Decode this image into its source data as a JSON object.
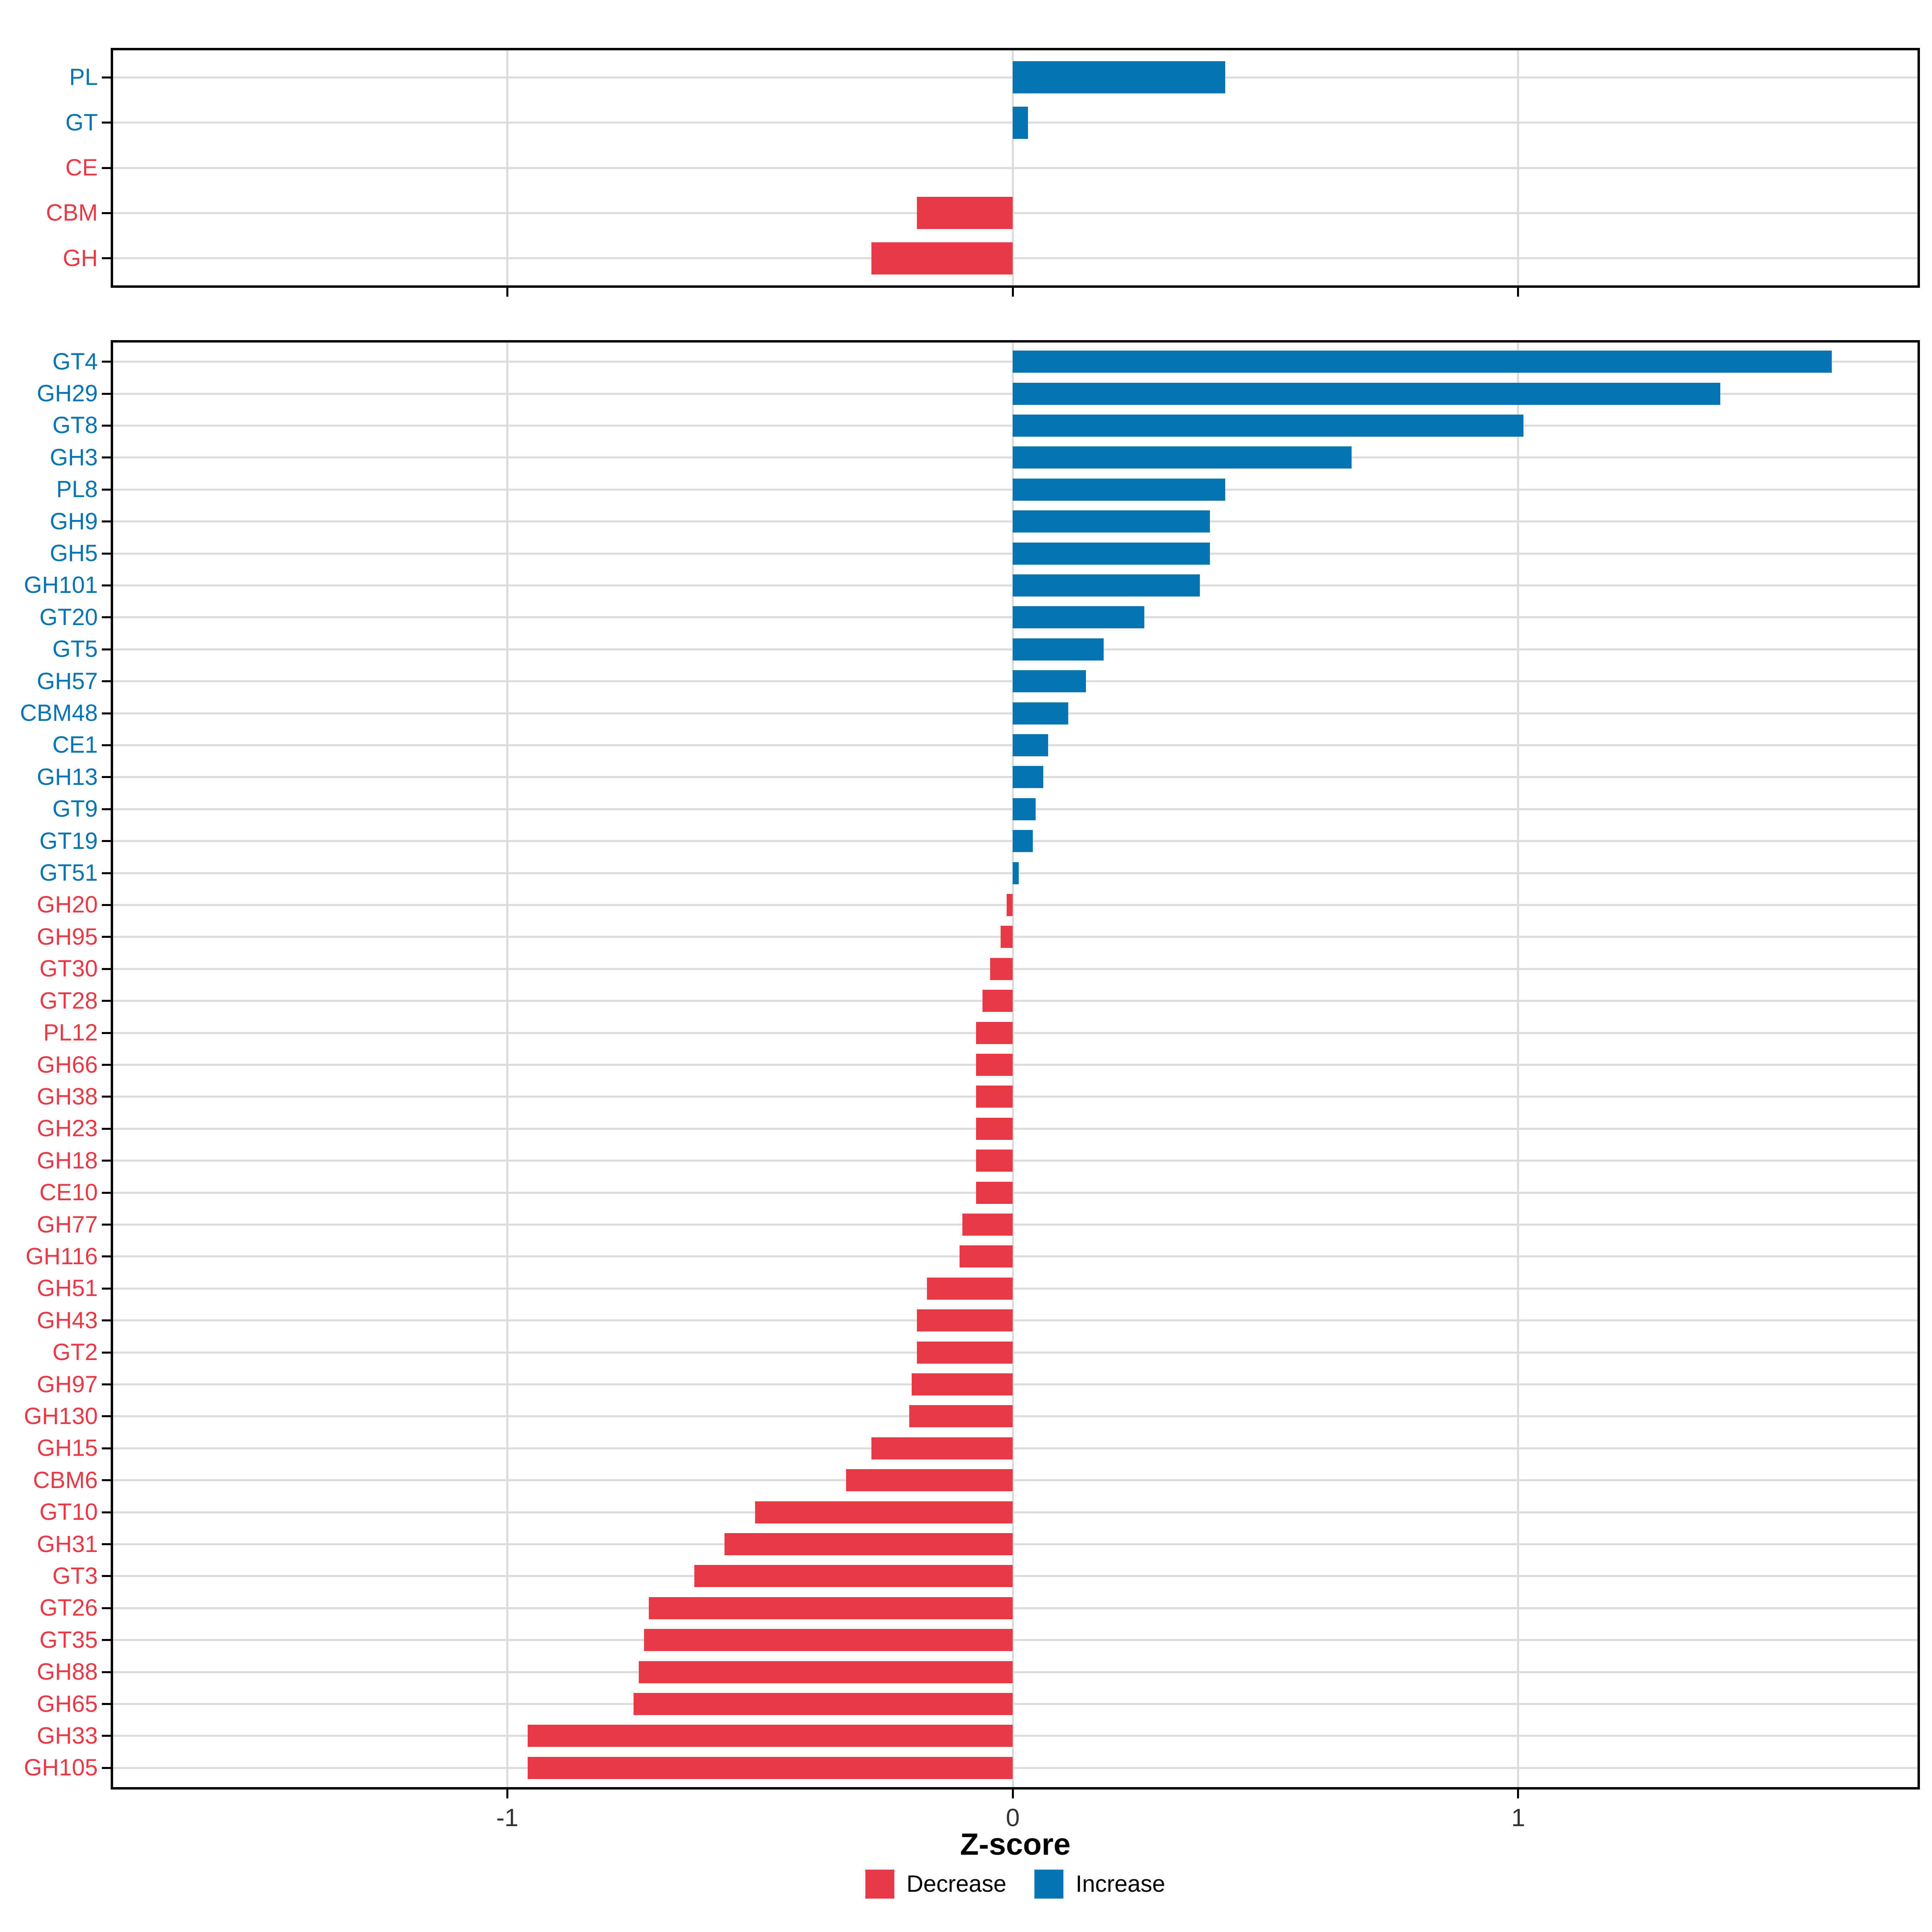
{
  "chart_data": [
    {
      "type": "bar",
      "orientation": "horizontal",
      "panel": "class-level",
      "title": "",
      "xlabel": "Z-score",
      "xlim": [
        -1.78,
        1.79
      ],
      "xticks": [
        -1,
        0,
        1
      ],
      "xtick_labels": [
        "-1",
        "0",
        "1"
      ],
      "grid": "major",
      "legend_position": "bottom",
      "categories": [
        "PL",
        "GT",
        "CE",
        "CBM",
        "GH"
      ],
      "values": [
        0.42,
        0.03,
        0,
        -0.19,
        -0.28
      ],
      "directions": [
        "Increase",
        "Increase",
        "Decrease",
        "Decrease",
        "Decrease"
      ]
    },
    {
      "type": "bar",
      "orientation": "horizontal",
      "panel": "family-level",
      "title": "",
      "xlabel": "Z-score",
      "xlim": [
        -1.78,
        1.79
      ],
      "xticks": [
        -1,
        0,
        1
      ],
      "xtick_labels": [
        "-1",
        "0",
        "1"
      ],
      "grid": "major",
      "legend_position": "bottom",
      "categories": [
        "GT4",
        "GH29",
        "GT8",
        "GH3",
        "PL8",
        "GH9",
        "GH5",
        "GH101",
        "GT20",
        "GT5",
        "GH57",
        "CBM48",
        "CE1",
        "GH13",
        "GT9",
        "GT19",
        "GT51",
        "GH20",
        "GH95",
        "GT30",
        "GT28",
        "PL12",
        "GH66",
        "GH38",
        "GH23",
        "GH18",
        "CE10",
        "GH77",
        "GH116",
        "GH51",
        "GH43",
        "GT2",
        "GH97",
        "GH130",
        "GH15",
        "CBM6",
        "GT10",
        "GH31",
        "GT3",
        "GT26",
        "GT35",
        "GH88",
        "GH65",
        "GH33",
        "GH105"
      ],
      "values": [
        1.62,
        1.4,
        1.01,
        0.67,
        0.42,
        0.39,
        0.39,
        0.37,
        0.26,
        0.18,
        0.145,
        0.11,
        0.07,
        0.06,
        0.045,
        0.04,
        0.012,
        -0.012,
        -0.024,
        -0.045,
        -0.06,
        -0.073,
        -0.073,
        -0.073,
        -0.073,
        -0.073,
        -0.073,
        -0.1,
        -0.105,
        -0.17,
        -0.19,
        -0.19,
        -0.2,
        -0.205,
        -0.28,
        -0.33,
        -0.51,
        -0.57,
        -0.63,
        -0.72,
        -0.73,
        -0.74,
        -0.75,
        -0.96,
        -0.96
      ],
      "directions": [
        "Increase",
        "Increase",
        "Increase",
        "Increase",
        "Increase",
        "Increase",
        "Increase",
        "Increase",
        "Increase",
        "Increase",
        "Increase",
        "Increase",
        "Increase",
        "Increase",
        "Increase",
        "Increase",
        "Increase",
        "Decrease",
        "Decrease",
        "Decrease",
        "Decrease",
        "Decrease",
        "Decrease",
        "Decrease",
        "Decrease",
        "Decrease",
        "Decrease",
        "Decrease",
        "Decrease",
        "Decrease",
        "Decrease",
        "Decrease",
        "Decrease",
        "Decrease",
        "Decrease",
        "Decrease",
        "Decrease",
        "Decrease",
        "Decrease",
        "Decrease",
        "Decrease",
        "Decrease",
        "Decrease",
        "Decrease",
        "Decrease"
      ]
    }
  ],
  "axis": {
    "xlabel": "Z-score",
    "xtick_labels": [
      "-1",
      "0",
      "1"
    ]
  },
  "legend": {
    "items": [
      {
        "label": "Decrease",
        "color": "#E83946"
      },
      {
        "label": "Increase",
        "color": "#0673B2"
      }
    ]
  },
  "colors": {
    "increase": "#0673B2",
    "decrease": "#E83946",
    "gridline": "#DCDCDC",
    "panel_border": "#000000",
    "tick": "#000000",
    "tick_label": "#333333",
    "axis_title": "#000000",
    "background": "#FFFFFF"
  }
}
